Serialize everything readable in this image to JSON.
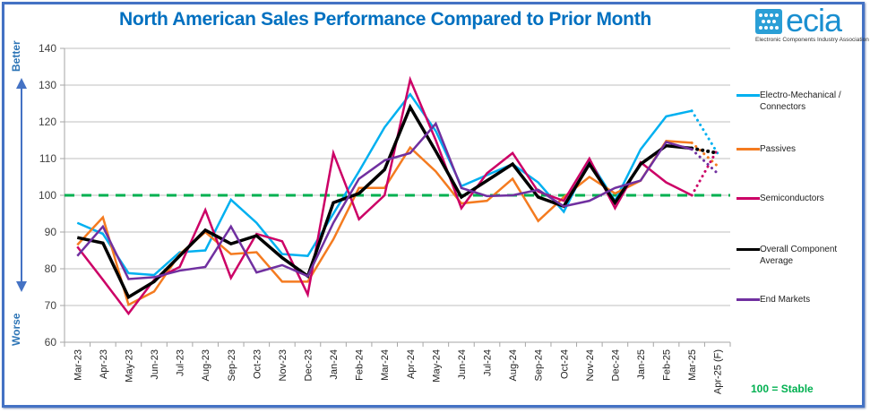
{
  "title": "North American Sales Performance Compared to Prior Month",
  "logo": {
    "text": "ecia",
    "subtitle": "Electronic Components Industry Association",
    "icon": "ecia-logo-icon"
  },
  "side_labels": {
    "top": "Better",
    "bottom": "Worse"
  },
  "stable_note": "100 = Stable",
  "colors": {
    "title": "#0070C0",
    "frame": "#4472C4",
    "stable_line": "#00B050",
    "grid": "#BFBFBF"
  },
  "chart_data": {
    "type": "line",
    "title": "North American Sales Performance Compared to Prior Month",
    "xlabel": "",
    "ylabel": "",
    "ylim": [
      60,
      140
    ],
    "yticks": [
      60,
      70,
      80,
      90,
      100,
      110,
      120,
      130,
      140
    ],
    "grid": true,
    "legend": "right",
    "reference_line": {
      "value": 100,
      "label": "100 = Stable",
      "style": "dashed",
      "color": "#00B050"
    },
    "forecast_from_index": 24,
    "categories": [
      "Mar-23",
      "Apr-23",
      "May-23",
      "Jun-23",
      "Jul-23",
      "Aug-23",
      "Sep-23",
      "Oct-23",
      "Nov-23",
      "Dec-23",
      "Jan-24",
      "Feb-24",
      "Mar-24",
      "Apr-24",
      "May-24",
      "Jun-24",
      "Jul-24",
      "Aug-24",
      "Sep-24",
      "Oct-24",
      "Nov-24",
      "Dec-24",
      "Jan-25",
      "Feb-25",
      "Mar-25",
      "Apr-25 (F)"
    ],
    "series": [
      {
        "name": "Electro-Mechanical / Connectors",
        "color": "#00B0F0",
        "values": [
          92.5,
          89.5,
          78.8,
          78.3,
          84.5,
          85,
          98.8,
          92.5,
          84,
          83.5,
          95,
          106.5,
          118.5,
          127.5,
          117.5,
          102.5,
          105.5,
          108.5,
          103.5,
          95.5,
          109.5,
          98.5,
          112.5,
          121.5,
          123,
          111.5
        ]
      },
      {
        "name": "Passives",
        "color": "#F47B20",
        "values": [
          86.5,
          94,
          70.2,
          73.8,
          84,
          90,
          84,
          84.5,
          76.5,
          76.5,
          88,
          102,
          102,
          113,
          106.5,
          97.8,
          98.5,
          104.5,
          93,
          99.5,
          105,
          100.5,
          104,
          114.8,
          114.3,
          108
        ]
      },
      {
        "name": "Semiconductors",
        "color": "#CC0066",
        "values": [
          86,
          77,
          67.8,
          77,
          80.5,
          96,
          77.5,
          89.5,
          87.5,
          73,
          111.5,
          93.5,
          100,
          131.5,
          115,
          96.5,
          106,
          111.5,
          101,
          98.5,
          110,
          96.5,
          109,
          103.5,
          100,
          112.5
        ]
      },
      {
        "name": "Overall Component Average",
        "color": "#000000",
        "values": [
          88.5,
          87,
          72.3,
          76.5,
          83.5,
          90.5,
          86.8,
          89,
          83,
          78,
          98,
          100.5,
          107,
          124,
          112,
          99.5,
          104,
          108.5,
          99.5,
          97,
          108.5,
          98,
          108.5,
          113.5,
          112.8,
          111.5
        ]
      },
      {
        "name": "End Markets",
        "color": "#7030A0",
        "values": [
          83.5,
          91.5,
          77.2,
          77.7,
          79.5,
          80.5,
          91.5,
          79,
          81,
          78,
          92.5,
          104.5,
          109.5,
          111.5,
          119.5,
          102,
          99.8,
          100,
          101.5,
          97,
          98.5,
          102,
          104,
          114.5,
          112.5,
          106
        ]
      }
    ]
  }
}
